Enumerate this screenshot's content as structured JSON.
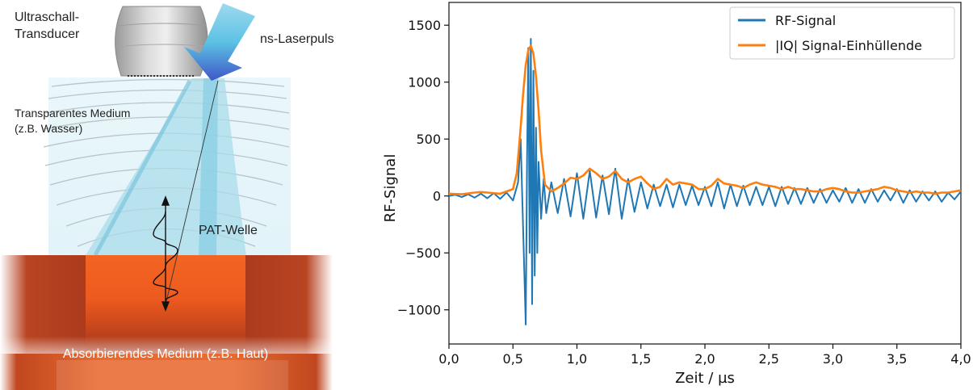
{
  "diagram": {
    "labels": {
      "transducer": [
        "Ultraschall-",
        "Transducer"
      ],
      "laser": "ns-Laserpuls",
      "medium": [
        "Transparentes Medium",
        "(z.B. Wasser)"
      ],
      "wave": "PAT-Welle",
      "absorber": "Absorbierendes Medium (z.B. Haut)"
    },
    "colors": {
      "beam": "#a9dcea",
      "arrow": "#3f56c9",
      "absorber_core": "#f26522",
      "absorber_edge": "#a3361a",
      "water": "#dff2f8"
    },
    "icons": [
      "transducer-icon",
      "laser-arrow-icon",
      "wavefront-lines",
      "signal-pulse-icon"
    ]
  },
  "chart_data": {
    "type": "line",
    "xlabel": "Zeit / µs",
    "ylabel": "RF-Signal",
    "xlim": [
      0.0,
      4.0
    ],
    "ylim": [
      -1300,
      1700
    ],
    "xticks": [
      0.0,
      0.5,
      1.0,
      1.5,
      2.0,
      2.5,
      3.0,
      3.5,
      4.0
    ],
    "xtick_labels": [
      "0,0",
      "0,5",
      "1,0",
      "1,5",
      "2,0",
      "2,5",
      "3,0",
      "3,5",
      "4,0"
    ],
    "yticks": [
      -1000,
      -500,
      0,
      500,
      1000,
      1500
    ],
    "ytick_labels": [
      "−1000",
      "−500",
      "0",
      "500",
      "1000",
      "1500"
    ],
    "legend_position": "top-right",
    "grid": false,
    "series": [
      {
        "name": "RF-Signal",
        "color": "#1f77b4",
        "x": [
          0.0,
          0.05,
          0.1,
          0.15,
          0.2,
          0.25,
          0.3,
          0.35,
          0.4,
          0.45,
          0.5,
          0.54,
          0.56,
          0.58,
          0.6,
          0.61,
          0.62,
          0.63,
          0.64,
          0.65,
          0.66,
          0.67,
          0.68,
          0.69,
          0.7,
          0.72,
          0.74,
          0.76,
          0.8,
          0.85,
          0.9,
          0.95,
          1.0,
          1.05,
          1.1,
          1.15,
          1.2,
          1.25,
          1.3,
          1.35,
          1.4,
          1.45,
          1.5,
          1.55,
          1.6,
          1.65,
          1.7,
          1.75,
          1.8,
          1.85,
          1.9,
          1.95,
          2.0,
          2.05,
          2.1,
          2.15,
          2.2,
          2.25,
          2.3,
          2.35,
          2.4,
          2.45,
          2.5,
          2.55,
          2.6,
          2.65,
          2.7,
          2.75,
          2.8,
          2.85,
          2.9,
          2.95,
          3.0,
          3.05,
          3.1,
          3.15,
          3.2,
          3.25,
          3.3,
          3.35,
          3.4,
          3.45,
          3.5,
          3.55,
          3.6,
          3.65,
          3.7,
          3.75,
          3.8,
          3.85,
          3.9,
          3.95,
          4.0
        ],
        "y": [
          0,
          10,
          -10,
          15,
          -15,
          20,
          -20,
          25,
          -25,
          30,
          -40,
          120,
          500,
          -300,
          -1130,
          300,
          1300,
          -500,
          1380,
          -950,
          1100,
          -700,
          600,
          -500,
          300,
          -200,
          150,
          -150,
          120,
          -150,
          150,
          -180,
          200,
          -200,
          220,
          -190,
          180,
          -160,
          240,
          -200,
          150,
          -140,
          120,
          -110,
          100,
          -90,
          100,
          -100,
          100,
          -80,
          90,
          -80,
          80,
          -90,
          120,
          -110,
          100,
          -90,
          90,
          -80,
          80,
          -80,
          80,
          -90,
          80,
          -70,
          70,
          -70,
          70,
          -60,
          60,
          -60,
          50,
          -50,
          70,
          -60,
          60,
          -60,
          60,
          -50,
          50,
          -40,
          60,
          -60,
          50,
          -50,
          40,
          -40,
          40,
          -50,
          30,
          -30,
          40
        ]
      },
      {
        "name": "|IQ| Signal-Einhüllende",
        "color": "#ff7f0e",
        "x": [
          0.0,
          0.1,
          0.2,
          0.25,
          0.3,
          0.4,
          0.45,
          0.5,
          0.53,
          0.56,
          0.58,
          0.6,
          0.62,
          0.64,
          0.66,
          0.68,
          0.7,
          0.72,
          0.75,
          0.8,
          0.85,
          0.9,
          0.95,
          1.0,
          1.05,
          1.1,
          1.15,
          1.2,
          1.25,
          1.3,
          1.35,
          1.4,
          1.45,
          1.5,
          1.55,
          1.6,
          1.65,
          1.7,
          1.75,
          1.8,
          1.85,
          1.9,
          1.95,
          2.0,
          2.05,
          2.1,
          2.15,
          2.2,
          2.25,
          2.3,
          2.35,
          2.4,
          2.45,
          2.5,
          2.55,
          2.6,
          2.65,
          2.7,
          2.75,
          2.8,
          2.85,
          2.9,
          2.95,
          3.0,
          3.05,
          3.1,
          3.15,
          3.2,
          3.25,
          3.3,
          3.35,
          3.4,
          3.45,
          3.5,
          3.55,
          3.6,
          3.65,
          3.7,
          3.75,
          3.8,
          3.85,
          3.9,
          3.95,
          4.0
        ],
        "y": [
          20,
          15,
          30,
          35,
          30,
          20,
          40,
          60,
          200,
          600,
          900,
          1150,
          1280,
          1320,
          1250,
          1050,
          750,
          400,
          100,
          40,
          70,
          110,
          160,
          150,
          180,
          240,
          200,
          150,
          170,
          220,
          150,
          120,
          150,
          170,
          110,
          60,
          80,
          150,
          100,
          120,
          110,
          100,
          60,
          60,
          90,
          150,
          110,
          100,
          90,
          70,
          100,
          120,
          100,
          90,
          80,
          60,
          80,
          60,
          60,
          50,
          40,
          40,
          60,
          70,
          60,
          40,
          30,
          30,
          40,
          50,
          60,
          80,
          70,
          50,
          40,
          30,
          40,
          30,
          30,
          20,
          30,
          30,
          40,
          50
        ]
      }
    ]
  }
}
